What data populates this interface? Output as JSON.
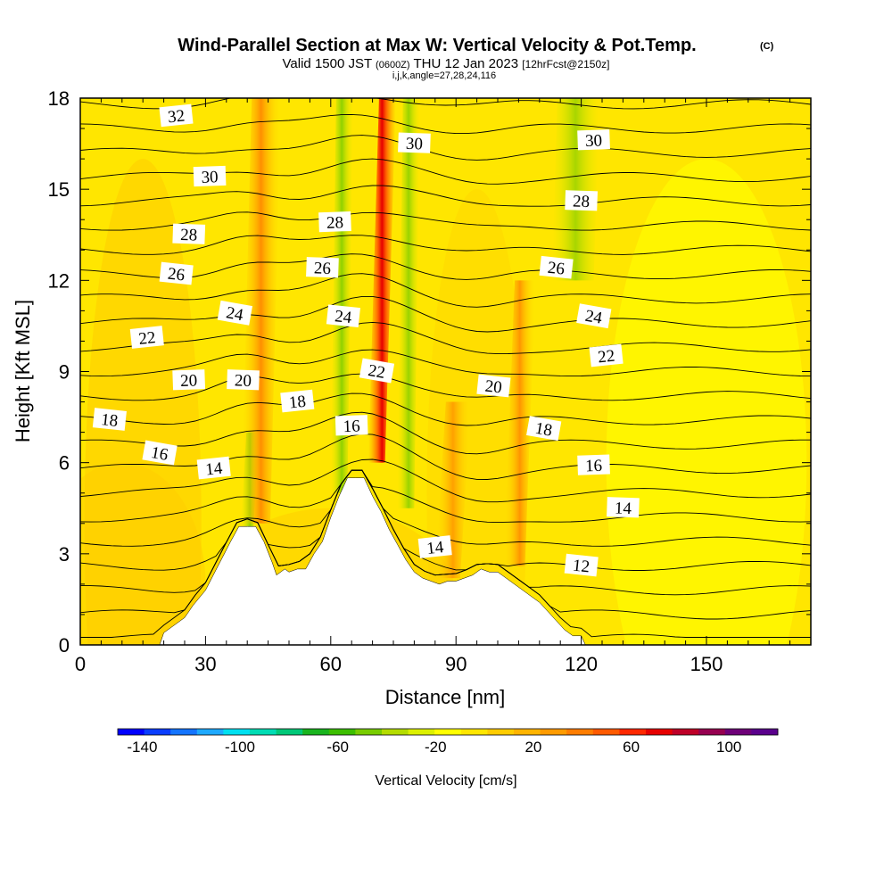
{
  "chart_data": {
    "type": "heatmap",
    "title": "Wind-Parallel Section at Max W: Vertical Velocity & Pot.Temp.",
    "title_mark": "(C)",
    "subtitle_main": "Valid 1500 JST",
    "subtitle_utc": "(0600Z)",
    "subtitle_date": "THU 12 Jan 2023",
    "subtitle_fcst": "[12hrFcst@2150z]",
    "subtitle_indices": "i,j,k,angle=27,28,24,116",
    "xlabel": "Distance [nm]",
    "ylabel": "Height [Kft MSL]",
    "xlim": [
      0,
      175
    ],
    "ylim": [
      0,
      18
    ],
    "x_ticks": [
      "0",
      "30",
      "60",
      "90",
      "120",
      "150"
    ],
    "y_ticks": [
      "0",
      "3",
      "6",
      "9",
      "12",
      "15",
      "18"
    ],
    "colorbar": {
      "label": "Vertical Velocity [cm/s]",
      "ticks": [
        "-140",
        "-100",
        "-60",
        "-20",
        "20",
        "60",
        "100"
      ],
      "tick_values": [
        -140,
        -100,
        -60,
        -20,
        20,
        60,
        100
      ],
      "range": [
        -150,
        120
      ],
      "colors": [
        "#0000ff",
        "#0a3dff",
        "#1474ff",
        "#1ea9ff",
        "#00e0f0",
        "#00dcb4",
        "#00c878",
        "#19b41e",
        "#3cbe00",
        "#78cc00",
        "#b4dc00",
        "#dcf000",
        "#ffff00",
        "#ffe600",
        "#ffcc00",
        "#ffb400",
        "#ff9b00",
        "#ff7d00",
        "#ff5a00",
        "#ff2800",
        "#e60000",
        "#be0028",
        "#960050",
        "#6e0078",
        "#5a008c"
      ]
    },
    "terrain_profile": {
      "x": [
        0,
        19,
        20,
        22,
        25,
        27,
        30,
        33,
        36,
        38,
        40,
        42,
        44,
        46,
        47,
        49,
        50,
        52,
        54,
        56,
        58,
        60,
        62,
        64,
        66,
        68,
        70,
        72,
        74,
        76,
        78,
        80,
        82,
        84,
        86,
        88,
        90,
        92,
        94,
        96,
        98,
        100,
        102,
        104,
        106,
        108,
        110,
        112,
        114,
        116,
        118,
        120,
        121,
        175
      ],
      "height": [
        0,
        0,
        0.4,
        0.6,
        0.9,
        1.3,
        1.8,
        2.6,
        3.4,
        3.9,
        3.9,
        3.9,
        3.4,
        2.7,
        2.3,
        2.5,
        2.4,
        2.5,
        2.5,
        3.0,
        3.4,
        4.2,
        4.9,
        5.5,
        5.5,
        5.5,
        4.9,
        4.4,
        3.8,
        3.3,
        2.8,
        2.4,
        2.2,
        2.1,
        2.0,
        2.1,
        2.1,
        2.2,
        2.3,
        2.5,
        2.4,
        2.4,
        2.2,
        2.0,
        1.8,
        1.6,
        1.4,
        1.1,
        0.8,
        0.5,
        0.3,
        0.3,
        0,
        0
      ]
    },
    "updraft_bands": [
      {
        "x": 42,
        "y0": 4.0,
        "y1": 18,
        "width": 7,
        "value": 45
      },
      {
        "x": 71,
        "y0": 6.0,
        "y1": 18,
        "width": 4,
        "value": 100
      },
      {
        "x": 104,
        "y0": 2.6,
        "y1": 12,
        "width": 5,
        "value": 35
      },
      {
        "x": 88,
        "y0": 2.2,
        "y1": 8,
        "width": 6,
        "value": 20
      }
    ],
    "downdraft_bands": [
      {
        "x": 40,
        "y0": 3.9,
        "y1": 7,
        "width": 3,
        "value": -40
      },
      {
        "x": 62,
        "y0": 5.0,
        "y1": 18,
        "width": 4,
        "value": -45
      },
      {
        "x": 78,
        "y0": 4.5,
        "y1": 18,
        "width": 4,
        "value": -35
      },
      {
        "x": 118,
        "y0": 12,
        "y1": 18,
        "width": 10,
        "value": -20
      }
    ],
    "theta_contours": {
      "levels": [
        12,
        13,
        14,
        15,
        16,
        17,
        18,
        19,
        20,
        21,
        22,
        23,
        24,
        25,
        26,
        27,
        28,
        29,
        30,
        31,
        32,
        33,
        34
      ],
      "labels": [
        {
          "text": "32",
          "x": 23,
          "y": 17.4
        },
        {
          "text": "30",
          "x": 31,
          "y": 15.4
        },
        {
          "text": "28",
          "x": 26,
          "y": 13.5
        },
        {
          "text": "26",
          "x": 23,
          "y": 12.2
        },
        {
          "text": "24",
          "x": 37,
          "y": 10.9
        },
        {
          "text": "22",
          "x": 16,
          "y": 10.1
        },
        {
          "text": "20",
          "x": 26,
          "y": 8.7
        },
        {
          "text": "20",
          "x": 39,
          "y": 8.7
        },
        {
          "text": "18",
          "x": 7,
          "y": 7.4
        },
        {
          "text": "16",
          "x": 19,
          "y": 6.3
        },
        {
          "text": "14",
          "x": 32,
          "y": 5.8
        },
        {
          "text": "28",
          "x": 61,
          "y": 13.9
        },
        {
          "text": "26",
          "x": 58,
          "y": 12.4
        },
        {
          "text": "24",
          "x": 63,
          "y": 10.8
        },
        {
          "text": "22",
          "x": 71,
          "y": 9.0
        },
        {
          "text": "18",
          "x": 52,
          "y": 8.0
        },
        {
          "text": "16",
          "x": 65,
          "y": 7.2
        },
        {
          "text": "30",
          "x": 80,
          "y": 16.5
        },
        {
          "text": "20",
          "x": 99,
          "y": 8.5
        },
        {
          "text": "18",
          "x": 111,
          "y": 7.1
        },
        {
          "text": "14",
          "x": 85,
          "y": 3.2
        },
        {
          "text": "30",
          "x": 123,
          "y": 16.6
        },
        {
          "text": "28",
          "x": 120,
          "y": 14.6
        },
        {
          "text": "26",
          "x": 114,
          "y": 12.4
        },
        {
          "text": "24",
          "x": 123,
          "y": 10.8
        },
        {
          "text": "22",
          "x": 126,
          "y": 9.5
        },
        {
          "text": "16",
          "x": 123,
          "y": 5.9
        },
        {
          "text": "14",
          "x": 130,
          "y": 4.5
        },
        {
          "text": "12",
          "x": 120,
          "y": 2.6
        }
      ]
    }
  }
}
